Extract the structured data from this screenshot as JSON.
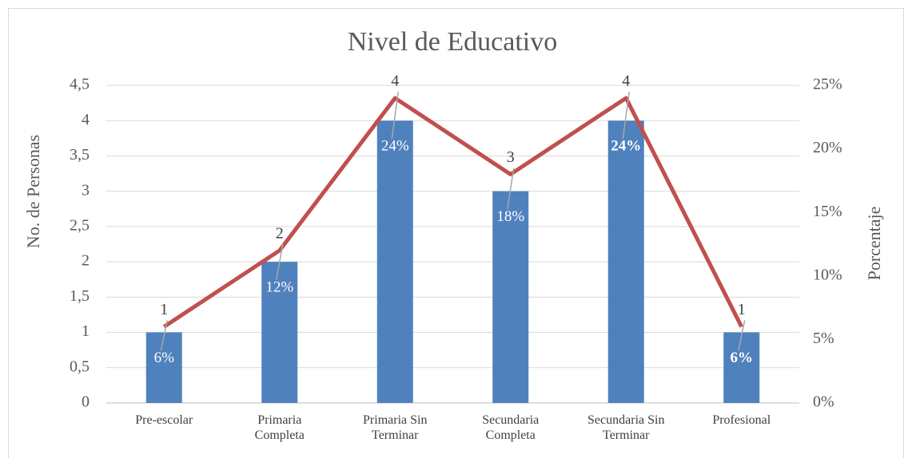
{
  "chart_data": {
    "type": "bar_line",
    "title": "Nivel de Educativo",
    "categories": [
      "Pre-escolar",
      "Primaria Completa",
      "Primaria Sin Terminar",
      "Secundaria Completa",
      "Secundaria Sin Terminar",
      "Profesional"
    ],
    "series": [
      {
        "name": "No. de Personas",
        "type": "bar",
        "color": "#4f81bd",
        "values": [
          1,
          2,
          4,
          3,
          4,
          1
        ]
      },
      {
        "name": "Porcentaje",
        "type": "line",
        "axis": "y2",
        "color": "#c0504d",
        "values": [
          6,
          12,
          24,
          18,
          24,
          6
        ],
        "value_labels": [
          "6%",
          "12%",
          "24%",
          "18%",
          "24%",
          "6%"
        ]
      }
    ],
    "ylabel": "No. de Personas",
    "y2label": "Porcentaje",
    "ylim": [
      0,
      4.5
    ],
    "yticks": [
      0,
      {
        "value": 0.5,
        "label": "0,5"
      },
      1,
      {
        "value": 1.5,
        "label": "1,5"
      },
      2,
      {
        "value": 2.5,
        "label": "2,5"
      },
      3,
      {
        "value": 3.5,
        "label": "3,5"
      },
      4,
      {
        "value": 4.5,
        "label": "4,5"
      }
    ],
    "y2lim": [
      0,
      25
    ],
    "y2ticks": [
      {
        "value": 0,
        "label": "0%"
      },
      {
        "value": 5,
        "label": "5%"
      },
      {
        "value": 10,
        "label": "10%"
      },
      {
        "value": 15,
        "label": "15%"
      },
      {
        "value": 20,
        "label": "20%"
      },
      {
        "value": 25,
        "label": "25%"
      }
    ],
    "grid": true
  }
}
